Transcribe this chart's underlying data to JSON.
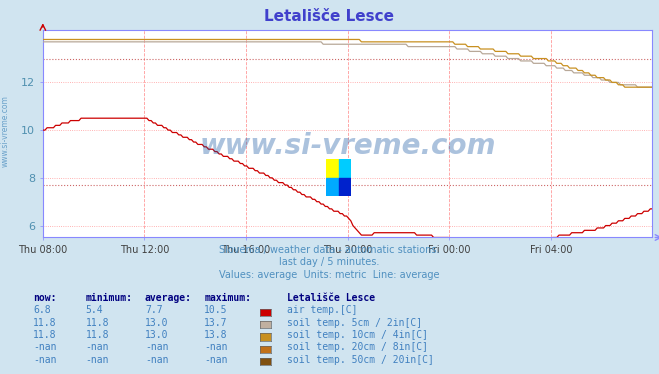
{
  "title": "Letališče Lesce",
  "bg_color": "#d0e4f0",
  "plot_bg_color": "#ffffff",
  "title_color": "#4040cc",
  "subtitle_lines": [
    "Slovenia / weather data - automatic stations.",
    "last day / 5 minutes.",
    "Values: average  Units: metric  Line: average"
  ],
  "subtitle_color": "#5090c0",
  "ylim": [
    5.5,
    14.2
  ],
  "yticks": [
    6,
    8,
    10,
    12
  ],
  "axis_color": "#8888ff",
  "watermark_text": "www.si-vreme.com",
  "watermark_color": "#1050a0",
  "watermark_alpha": 0.35,
  "series": [
    {
      "name": "air temp.[C]",
      "color": "#cc0000",
      "linewidth": 1.0,
      "swatch_color": "#cc0000"
    },
    {
      "name": "soil temp. 5cm / 2in[C]",
      "color": "#b8a898",
      "linewidth": 1.0,
      "swatch_color": "#c0b0a0"
    },
    {
      "name": "soil temp. 10cm / 4in[C]",
      "color": "#c89020",
      "linewidth": 1.0,
      "swatch_color": "#c89020"
    },
    {
      "name": "soil temp. 20cm / 8in[C]",
      "color": "#c07018",
      "linewidth": 1.0,
      "swatch_color": "#c07018"
    },
    {
      "name": "soil temp. 50cm / 20in[C]",
      "color": "#805010",
      "linewidth": 1.0,
      "swatch_color": "#805010"
    }
  ],
  "table_header": [
    "now:",
    "minimum:",
    "average:",
    "maximum:",
    "Letališče Lesce"
  ],
  "table_rows": [
    [
      "6.8",
      "5.4",
      "7.7",
      "10.5",
      "air temp.[C]"
    ],
    [
      "11.8",
      "11.8",
      "13.0",
      "13.7",
      "soil temp. 5cm / 2in[C]"
    ],
    [
      "11.8",
      "11.8",
      "13.0",
      "13.8",
      "soil temp. 10cm / 4in[C]"
    ],
    [
      "-nan",
      "-nan",
      "-nan",
      "-nan",
      "soil temp. 20cm / 8in[C]"
    ],
    [
      "-nan",
      "-nan",
      "-nan",
      "-nan",
      "soil temp. 50cm / 20in[C]"
    ]
  ],
  "table_color": "#4080c0",
  "table_header_color": "#000080",
  "avg_air": 7.7,
  "avg_soil": 13.0
}
